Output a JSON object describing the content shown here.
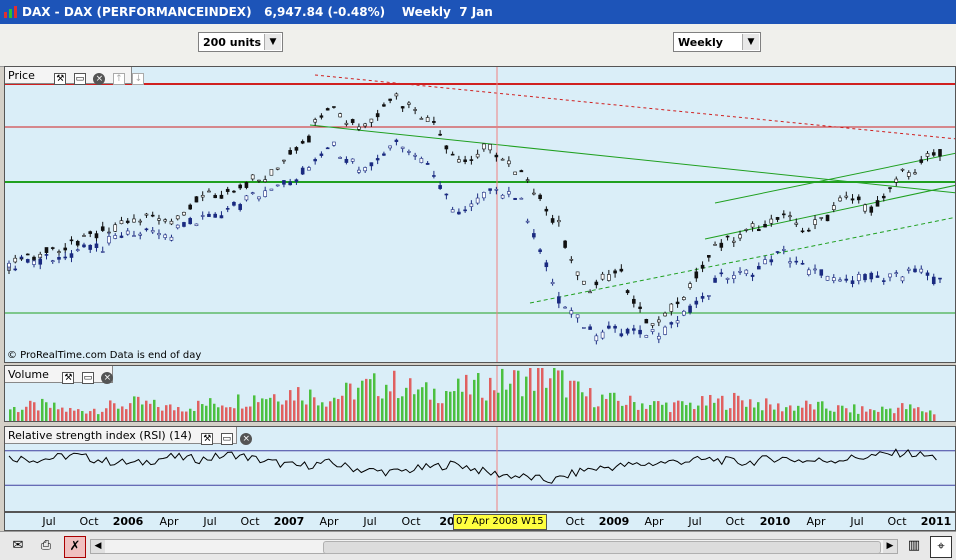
{
  "window": {
    "title": "DAX - DAX (PERFORMANCEINDEX)",
    "last": "6,947.84",
    "change": "(-0.48%)",
    "period": "Weekly",
    "date": "7 Jan"
  },
  "toolbar": {
    "units_value": "200 units",
    "timeframe_value": "Weekly"
  },
  "panels": {
    "price": {
      "label": "Price",
      "watermark": "© ProRealTime.com  Data is end of day"
    },
    "volume": {
      "label": "Volume"
    },
    "rsi": {
      "label": "Relative strength index (RSI) (14)"
    }
  },
  "xaxis": {
    "ticks": [
      {
        "label": "Jul",
        "year": false
      },
      {
        "label": "Oct",
        "year": false
      },
      {
        "label": "2006",
        "year": true
      },
      {
        "label": "Apr",
        "year": false
      },
      {
        "label": "Jul",
        "year": false
      },
      {
        "label": "Oct",
        "year": false
      },
      {
        "label": "2007",
        "year": true
      },
      {
        "label": "Apr",
        "year": false
      },
      {
        "label": "Jul",
        "year": false
      },
      {
        "label": "Oct",
        "year": false
      },
      {
        "label": "20",
        "year": true
      },
      {
        "label": "Oct",
        "year": false
      },
      {
        "label": "2009",
        "year": true
      },
      {
        "label": "Apr",
        "year": false
      },
      {
        "label": "Jul",
        "year": false
      },
      {
        "label": "Oct",
        "year": false
      },
      {
        "label": "2010",
        "year": true
      },
      {
        "label": "Apr",
        "year": false
      },
      {
        "label": "Jul",
        "year": false
      },
      {
        "label": "Oct",
        "year": false
      },
      {
        "label": "2011",
        "year": true
      }
    ],
    "cursor_label": "07 Apr 2008 W15"
  },
  "colors": {
    "panel_bg": "#daeef8",
    "dax": "#111111",
    "comparison": "#1a2a80",
    "resistance": "#d02020",
    "support": "#20a020",
    "vol_up": "#4cc040",
    "vol_down": "#e06060",
    "cursor": "#f08080"
  },
  "icons": {
    "app": "prorealtime-logo-icon",
    "save": "envelope-icon",
    "print": "printer-icon",
    "cursor": "crosshair-icon"
  },
  "chart_data": {
    "type": "line",
    "series": [
      {
        "values": [
          5000,
          5150,
          5350,
          5600,
          5900,
          5750,
          6150,
          6300,
          6600,
          7050,
          7850,
          7450,
          8000,
          7700,
          6800,
          7100,
          6550,
          5800,
          4500,
          4900,
          3800,
          4300,
          5300,
          5600,
          5800,
          5600,
          6150,
          6000,
          6700,
          6950
        ]
      },
      {
        "values": [
          4950,
          5000,
          5200,
          5300,
          5600,
          5450,
          5800,
          6000,
          6300,
          6550,
          7150,
          6700,
          7200,
          6900,
          5800,
          6300,
          6100,
          4500,
          3700,
          3800,
          3650,
          4000,
          4650,
          4800,
          5200,
          4800,
          4650,
          4700,
          4850,
          4750
        ]
      }
    ],
    "x_range": [
      "2005-06",
      "2011-01"
    ],
    "volume": [
      18,
      22,
      15,
      20,
      25,
      19,
      23,
      28,
      35,
      40,
      30,
      45,
      50,
      38,
      42,
      48,
      55,
      60,
      35,
      28,
      24,
      22,
      26,
      30,
      20,
      22,
      18,
      16,
      20,
      14
    ],
    "rsi_levels": [
      70,
      30
    ],
    "rsi": [
      62,
      60,
      65,
      58,
      55,
      63,
      60,
      66,
      58,
      52,
      56,
      48,
      45,
      50,
      55,
      44,
      40,
      35,
      48,
      52,
      55,
      58,
      60,
      56,
      62,
      58,
      60,
      64,
      68,
      62
    ],
    "horizontal_lines": [
      {
        "color": "red",
        "level": "upper"
      },
      {
        "color": "red",
        "level": "second"
      },
      {
        "color": "green",
        "level": "middle"
      },
      {
        "color": "green",
        "level": "lower"
      }
    ]
  }
}
